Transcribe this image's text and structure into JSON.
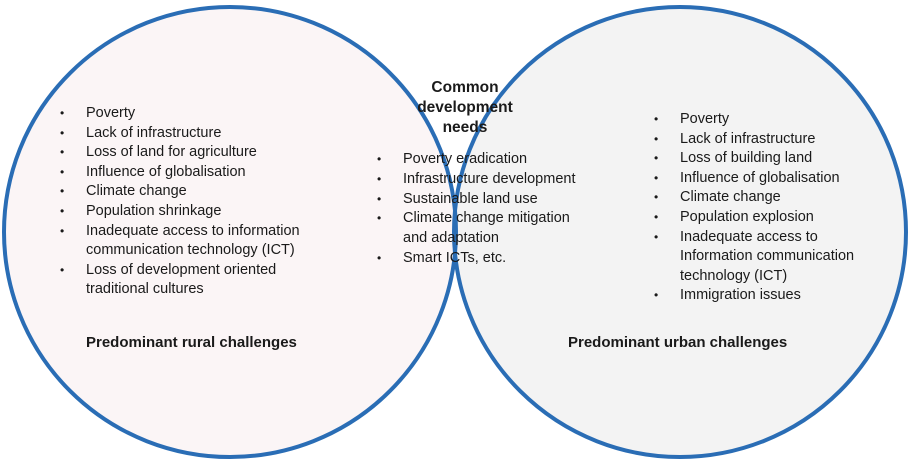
{
  "colors": {
    "circle_stroke": "#2a6db5",
    "rural_fill": "#fbf5f6",
    "urban_fill": "#f3f3f3",
    "overlap_fill": "#e9e4e5"
  },
  "rural": {
    "title": "Predominant rural challenges",
    "items": [
      "Poverty",
      "Lack of infrastructure",
      "Loss of land for agriculture",
      "Influence of globalisation",
      "Climate change",
      "Population shrinkage",
      "Inadequate access to information communication technology (ICT)",
      "Loss of development oriented traditional cultures"
    ]
  },
  "common": {
    "title": "Common development needs",
    "items": [
      "Poverty eradication",
      "Infrastructure development",
      "Sustainable land use",
      "Climate change mitigation and adaptation",
      "Smart ICTs, etc."
    ]
  },
  "urban": {
    "title": "Predominant urban challenges",
    "items": [
      "Poverty",
      "Lack of infrastructure",
      "Loss of building land",
      "Influence of globalisation",
      "Climate change",
      "Population explosion",
      "Inadequate access to Information communication technology (ICT)",
      "Immigration issues"
    ]
  }
}
